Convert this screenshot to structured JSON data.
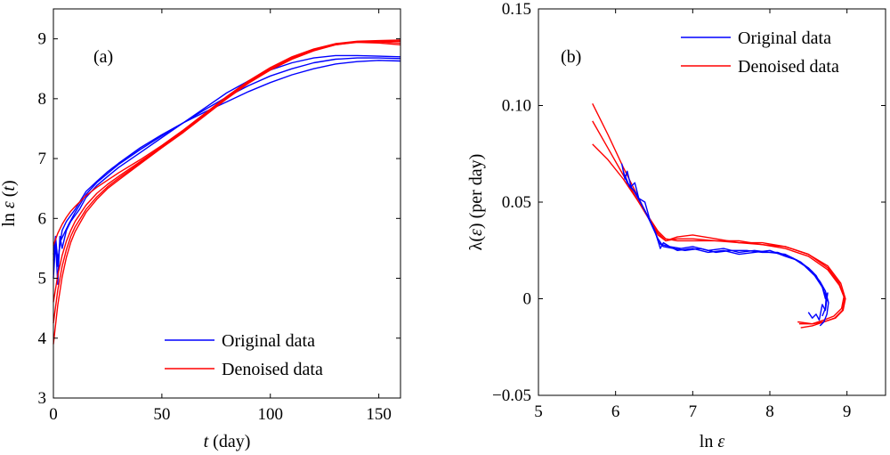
{
  "chart_data": [
    {
      "id": "a",
      "type": "line",
      "panel_label": "(a)",
      "xlabel": {
        "italic": "t",
        "rest": " (day)"
      },
      "ylabel": {
        "plain": "ln ",
        "italic1": "ε",
        "mid": " (",
        "italic2": "t",
        "end": ")"
      },
      "xlim": [
        0,
        160
      ],
      "ylim": [
        3,
        9.5
      ],
      "xticks": [
        0,
        50,
        100,
        150
      ],
      "yticks": [
        3,
        4,
        5,
        6,
        7,
        8,
        9
      ],
      "legend_position": "bottom-right",
      "series": [
        {
          "name": "Original data",
          "color": "#0000ff",
          "group": "original",
          "x": [
            0,
            1,
            2,
            3,
            4,
            6,
            8,
            10,
            12,
            15,
            20,
            25,
            30,
            40,
            50,
            60,
            70,
            80,
            90,
            100,
            110,
            120,
            130,
            140,
            150,
            160
          ],
          "y": [
            5.0,
            5.6,
            4.9,
            5.7,
            5.5,
            5.8,
            5.95,
            6.05,
            6.15,
            6.35,
            6.55,
            6.7,
            6.85,
            7.1,
            7.35,
            7.6,
            7.85,
            8.1,
            8.3,
            8.48,
            8.6,
            8.68,
            8.72,
            8.72,
            8.71,
            8.7
          ]
        },
        {
          "name": "Original data",
          "color": "#0000ff",
          "group": "original",
          "x": [
            0,
            1,
            2,
            3,
            5,
            7,
            10,
            15,
            20,
            25,
            30,
            40,
            50,
            60,
            70,
            80,
            90,
            100,
            110,
            120,
            130,
            140,
            150,
            160
          ],
          "y": [
            5.3,
            5.5,
            5.2,
            5.6,
            5.75,
            5.9,
            6.1,
            6.4,
            6.6,
            6.75,
            6.9,
            7.15,
            7.38,
            7.6,
            7.82,
            8.03,
            8.22,
            8.38,
            8.5,
            8.6,
            8.66,
            8.68,
            8.68,
            8.67
          ]
        },
        {
          "name": "Original data",
          "color": "#0000ff",
          "group": "original",
          "x": [
            0,
            1,
            2,
            4,
            6,
            10,
            15,
            20,
            25,
            30,
            40,
            50,
            60,
            70,
            80,
            90,
            100,
            110,
            120,
            130,
            140,
            150,
            160
          ],
          "y": [
            5.4,
            5.7,
            5.3,
            5.8,
            5.95,
            6.15,
            6.45,
            6.62,
            6.78,
            6.92,
            7.18,
            7.4,
            7.6,
            7.78,
            7.95,
            8.12,
            8.27,
            8.4,
            8.5,
            8.58,
            8.62,
            8.64,
            8.63
          ]
        },
        {
          "name": "Denoised data",
          "color": "#ff0000",
          "group": "denoised",
          "x": [
            0,
            2,
            4,
            6,
            8,
            10,
            15,
            20,
            25,
            30,
            40,
            50,
            60,
            70,
            80,
            90,
            100,
            110,
            120,
            130,
            140,
            150,
            160
          ],
          "y": [
            5.55,
            5.75,
            5.9,
            6.02,
            6.12,
            6.2,
            6.38,
            6.52,
            6.64,
            6.76,
            6.98,
            7.22,
            7.48,
            7.76,
            8.04,
            8.3,
            8.52,
            8.7,
            8.83,
            8.92,
            8.96,
            8.97,
            8.98
          ]
        },
        {
          "name": "Denoised data",
          "color": "#ff0000",
          "group": "denoised",
          "x": [
            0,
            2,
            4,
            6,
            8,
            10,
            15,
            20,
            25,
            30,
            40,
            50,
            60,
            70,
            80,
            90,
            100,
            110,
            120,
            130,
            140,
            150,
            160
          ],
          "y": [
            4.6,
            5.05,
            5.38,
            5.62,
            5.8,
            5.95,
            6.22,
            6.42,
            6.57,
            6.7,
            6.95,
            7.2,
            7.46,
            7.74,
            8.02,
            8.28,
            8.5,
            8.68,
            8.82,
            8.91,
            8.95,
            8.95,
            8.93
          ]
        },
        {
          "name": "Denoised data",
          "color": "#ff0000",
          "group": "denoised",
          "x": [
            0,
            2,
            4,
            6,
            8,
            10,
            15,
            20,
            25,
            30,
            40,
            50,
            60,
            70,
            80,
            90,
            100,
            110,
            120,
            130,
            140,
            150,
            160
          ],
          "y": [
            4.25,
            4.8,
            5.2,
            5.48,
            5.7,
            5.86,
            6.15,
            6.36,
            6.53,
            6.67,
            6.93,
            7.19,
            7.45,
            7.73,
            8.01,
            8.27,
            8.49,
            8.67,
            8.81,
            8.9,
            8.94,
            8.93,
            8.9
          ]
        },
        {
          "name": "Denoised data",
          "color": "#ff0000",
          "group": "denoised",
          "x": [
            0,
            2,
            4,
            6,
            8,
            10,
            15,
            20,
            25,
            30,
            40,
            50,
            60,
            70,
            80,
            90,
            100,
            110,
            120,
            130,
            140,
            150,
            160
          ],
          "y": [
            3.9,
            4.55,
            5.02,
            5.35,
            5.6,
            5.78,
            6.1,
            6.32,
            6.5,
            6.64,
            6.91,
            7.18,
            7.44,
            7.72,
            8.0,
            8.26,
            8.48,
            8.66,
            8.8,
            8.9,
            8.95,
            8.96,
            8.96
          ]
        }
      ]
    },
    {
      "id": "b",
      "type": "line",
      "panel_label": "(b)",
      "xlabel": {
        "plain": "ln ",
        "italic": "ε"
      },
      "ylabel": {
        "pre": "λ(",
        "italic": "ε",
        "post": ") (per day)"
      },
      "xlim": [
        5,
        9.5
      ],
      "ylim": [
        -0.05,
        0.15
      ],
      "xticks": [
        5,
        6,
        7,
        8,
        9
      ],
      "yticks": [
        -0.05,
        0,
        0.05,
        0.1,
        0.15
      ],
      "ytick_labels": [
        "−0.05",
        "0",
        "0.05",
        "0.10",
        "0.15"
      ],
      "legend_position": "top-right",
      "series": [
        {
          "name": "Denoised data",
          "color": "#ff0000",
          "group": "denoised",
          "x": [
            5.7,
            5.9,
            6.1,
            6.3,
            6.45,
            6.55,
            6.65,
            6.8,
            7.0,
            7.3,
            7.6,
            7.9,
            8.2,
            8.5,
            8.75,
            8.92,
            8.98,
            8.95,
            8.85,
            8.7,
            8.55,
            8.4
          ],
          "y": [
            0.101,
            0.085,
            0.068,
            0.052,
            0.04,
            0.033,
            0.03,
            0.031,
            0.031,
            0.03,
            0.029,
            0.029,
            0.027,
            0.023,
            0.017,
            0.008,
            0.0,
            -0.006,
            -0.01,
            -0.012,
            -0.014,
            -0.015
          ]
        },
        {
          "name": "Denoised data",
          "color": "#ff0000",
          "group": "denoised",
          "x": [
            5.7,
            5.9,
            6.1,
            6.3,
            6.45,
            6.55,
            6.65,
            6.8,
            7.0,
            7.3,
            7.6,
            7.9,
            8.2,
            8.5,
            8.75,
            8.9,
            8.96,
            8.93,
            8.83,
            8.7,
            8.55,
            8.38
          ],
          "y": [
            0.092,
            0.078,
            0.064,
            0.05,
            0.04,
            0.034,
            0.03,
            0.032,
            0.033,
            0.031,
            0.029,
            0.028,
            0.027,
            0.023,
            0.016,
            0.008,
            0.001,
            -0.005,
            -0.009,
            -0.011,
            -0.013,
            -0.013
          ]
        },
        {
          "name": "Denoised data",
          "color": "#ff0000",
          "group": "denoised",
          "x": [
            5.7,
            5.9,
            6.1,
            6.3,
            6.45,
            6.55,
            6.65,
            6.8,
            7.0,
            7.3,
            7.6,
            7.9,
            8.2,
            8.5,
            8.75,
            8.9,
            8.97,
            8.94,
            8.84,
            8.7,
            8.55,
            8.36
          ],
          "y": [
            0.08,
            0.072,
            0.062,
            0.05,
            0.041,
            0.035,
            0.031,
            0.03,
            0.03,
            0.03,
            0.03,
            0.028,
            0.026,
            0.022,
            0.015,
            0.007,
            0.0,
            -0.006,
            -0.01,
            -0.012,
            -0.013,
            -0.012
          ]
        },
        {
          "name": "Original data",
          "color": "#0000ff",
          "group": "original",
          "x": [
            6.08,
            6.12,
            6.15,
            6.2,
            6.25,
            6.3,
            6.38,
            6.45,
            6.52,
            6.58,
            6.62,
            6.7,
            6.8,
            7.0,
            7.2,
            7.4,
            7.6,
            7.8,
            8.0,
            8.2,
            8.35,
            8.5,
            8.6,
            8.68,
            8.72,
            8.75,
            8.72,
            8.68,
            8.64,
            8.6,
            8.55,
            8.5
          ],
          "y": [
            0.07,
            0.062,
            0.066,
            0.058,
            0.06,
            0.052,
            0.05,
            0.04,
            0.034,
            0.026,
            0.029,
            0.027,
            0.025,
            0.026,
            0.024,
            0.025,
            0.023,
            0.024,
            0.025,
            0.022,
            0.02,
            0.016,
            0.012,
            0.006,
            0.0,
            0.003,
            -0.006,
            -0.003,
            -0.011,
            -0.008,
            -0.01,
            -0.007
          ]
        },
        {
          "name": "Original data",
          "color": "#0000ff",
          "group": "original",
          "x": [
            6.1,
            6.15,
            6.2,
            6.25,
            6.32,
            6.4,
            6.48,
            6.55,
            6.6,
            6.7,
            6.85,
            7.0,
            7.2,
            7.4,
            7.6,
            7.8,
            8.0,
            8.2,
            8.4,
            8.55,
            8.65,
            8.72,
            8.76,
            8.74,
            8.7,
            8.65
          ],
          "y": [
            0.066,
            0.06,
            0.058,
            0.055,
            0.05,
            0.044,
            0.037,
            0.031,
            0.028,
            0.027,
            0.026,
            0.027,
            0.025,
            0.026,
            0.024,
            0.025,
            0.024,
            0.023,
            0.019,
            0.014,
            0.009,
            0.004,
            -0.002,
            -0.008,
            -0.012,
            -0.014
          ]
        },
        {
          "name": "Original data",
          "color": "#0000ff",
          "group": "original",
          "x": [
            6.12,
            6.18,
            6.24,
            6.3,
            6.36,
            6.44,
            6.5,
            6.56,
            6.62,
            6.75,
            6.9,
            7.1,
            7.3,
            7.5,
            7.7,
            7.9,
            8.1,
            8.3,
            8.45,
            8.58,
            8.68,
            8.73,
            8.72,
            8.68
          ],
          "y": [
            0.064,
            0.058,
            0.056,
            0.052,
            0.047,
            0.041,
            0.036,
            0.029,
            0.027,
            0.026,
            0.025,
            0.026,
            0.024,
            0.025,
            0.025,
            0.024,
            0.024,
            0.021,
            0.017,
            0.012,
            0.006,
            0.001,
            -0.005,
            -0.009
          ]
        }
      ]
    }
  ],
  "legend": {
    "original_label": "Original data",
    "denoised_label": "Denoised data",
    "original_color": "#0000ff",
    "denoised_color": "#ff0000"
  }
}
